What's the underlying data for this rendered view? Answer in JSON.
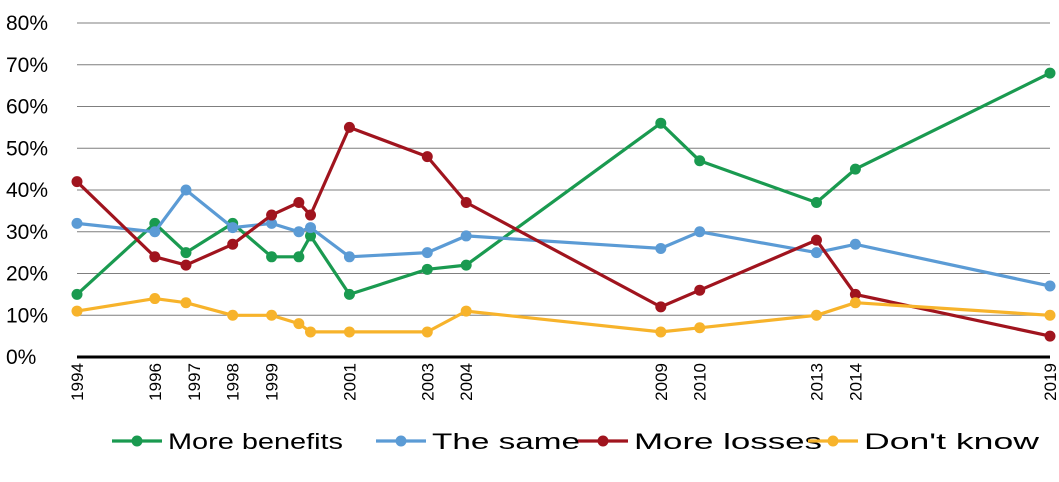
{
  "chart_data": {
    "type": "line",
    "title": "",
    "xlabel": "",
    "ylabel": "",
    "ylim": [
      0,
      80
    ],
    "y_ticks": [
      "0%",
      "10%",
      "20%",
      "30%",
      "40%",
      "50%",
      "60%",
      "70%",
      "80%"
    ],
    "grid": "horizontal",
    "legend_position": "bottom",
    "x_labels": [
      {
        "x": 1994,
        "text": "1994"
      },
      {
        "x": 1996,
        "text": "1996"
      },
      {
        "x": 1997,
        "text": "1997"
      },
      {
        "x": 1998,
        "text": "1998"
      },
      {
        "x": 1999,
        "text": "1999"
      },
      {
        "x": 2001,
        "text": "2001"
      },
      {
        "x": 2003,
        "text": "2003"
      },
      {
        "x": 2004,
        "text": "2004"
      },
      {
        "x": 2009,
        "text": "2009"
      },
      {
        "x": 2010,
        "text": "2010"
      },
      {
        "x": 2013,
        "text": "2013"
      },
      {
        "x": 2014,
        "text": "2014"
      },
      {
        "x": 2019,
        "text": "2019"
      }
    ],
    "series": [
      {
        "name": "More benefits",
        "color": "#1a9a50",
        "points": [
          [
            1994,
            15
          ],
          [
            1996,
            32
          ],
          [
            1996.8,
            25
          ],
          [
            1998,
            32
          ],
          [
            1999,
            24
          ],
          [
            1999.7,
            24
          ],
          [
            2000,
            29
          ],
          [
            2001,
            15
          ],
          [
            2003,
            21
          ],
          [
            2004,
            22
          ],
          [
            2009,
            56
          ],
          [
            2010,
            47
          ],
          [
            2013,
            37
          ],
          [
            2014,
            45
          ],
          [
            2019,
            68
          ]
        ]
      },
      {
        "name": "The same",
        "color": "#5b9bd5",
        "points": [
          [
            1994,
            32
          ],
          [
            1996,
            30
          ],
          [
            1996.8,
            40
          ],
          [
            1998,
            31
          ],
          [
            1999,
            32
          ],
          [
            1999.7,
            30
          ],
          [
            2000,
            31
          ],
          [
            2001,
            24
          ],
          [
            2003,
            25
          ],
          [
            2004,
            29
          ],
          [
            2009,
            26
          ],
          [
            2010,
            30
          ],
          [
            2013,
            25
          ],
          [
            2014,
            27
          ],
          [
            2019,
            17
          ]
        ]
      },
      {
        "name": "More losses",
        "color": "#a0141e",
        "points": [
          [
            1994,
            42
          ],
          [
            1996,
            24
          ],
          [
            1996.8,
            22
          ],
          [
            1998,
            27
          ],
          [
            1999,
            34
          ],
          [
            1999.7,
            37
          ],
          [
            2000,
            34
          ],
          [
            2001,
            55
          ],
          [
            2003,
            48
          ],
          [
            2004,
            37
          ],
          [
            2009,
            12
          ],
          [
            2010,
            16
          ],
          [
            2013,
            28
          ],
          [
            2014,
            15
          ],
          [
            2019,
            5
          ]
        ]
      },
      {
        "name": "Don't know",
        "color": "#f7b32b",
        "points": [
          [
            1994,
            11
          ],
          [
            1996,
            14
          ],
          [
            1996.8,
            13
          ],
          [
            1998,
            10
          ],
          [
            1999,
            10
          ],
          [
            1999.7,
            8
          ],
          [
            2000,
            6
          ],
          [
            2001,
            6
          ],
          [
            2003,
            6
          ],
          [
            2004,
            11
          ],
          [
            2009,
            6
          ],
          [
            2010,
            7
          ],
          [
            2013,
            10
          ],
          [
            2014,
            13
          ],
          [
            2019,
            10
          ]
        ]
      }
    ]
  }
}
